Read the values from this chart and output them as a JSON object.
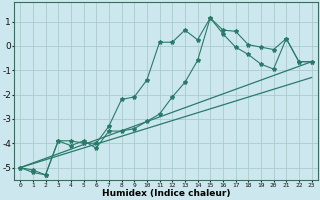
{
  "xlabel": "Humidex (Indice chaleur)",
  "background_color": "#cce8ee",
  "line_color": "#2a7a6a",
  "grid_color": "#aacccc",
  "xlim": [
    -0.5,
    23.5
  ],
  "ylim": [
    -5.5,
    1.8
  ],
  "series1_x": [
    0,
    1,
    2,
    3,
    4,
    5,
    6,
    7,
    8,
    9,
    10,
    11,
    12,
    13,
    14,
    15,
    16,
    17,
    18,
    19,
    20,
    21,
    22,
    23
  ],
  "series1_y": [
    -5.0,
    -5.1,
    -5.3,
    -3.9,
    -3.9,
    -4.0,
    -4.0,
    -3.3,
    -2.2,
    -2.1,
    -1.4,
    0.15,
    0.15,
    0.65,
    0.25,
    1.15,
    0.65,
    0.6,
    0.05,
    -0.05,
    -0.15,
    0.3,
    -0.65,
    -0.65
  ],
  "series2_x": [
    0,
    1,
    2,
    3,
    4,
    5,
    6,
    7,
    8,
    9,
    10,
    11,
    12,
    13,
    14,
    15,
    16,
    17,
    18,
    19,
    20,
    21,
    22,
    23
  ],
  "series2_y": [
    -5.0,
    -5.2,
    -5.3,
    -3.9,
    -4.1,
    -3.9,
    -4.2,
    -3.5,
    -3.5,
    -3.4,
    -3.1,
    -2.8,
    -2.1,
    -1.5,
    -0.6,
    1.15,
    0.5,
    -0.05,
    -0.35,
    -0.75,
    -0.95,
    0.3,
    -0.65,
    -0.65
  ],
  "line3_x": [
    0,
    23
  ],
  "line3_y": [
    -5.0,
    -0.65
  ],
  "line4_x": [
    0,
    23
  ],
  "line4_y": [
    -5.0,
    -1.3
  ],
  "yticks": [
    -5,
    -4,
    -3,
    -2,
    -1,
    0,
    1
  ],
  "xticks": [
    0,
    1,
    2,
    3,
    4,
    5,
    6,
    7,
    8,
    9,
    10,
    11,
    12,
    13,
    14,
    15,
    16,
    17,
    18,
    19,
    20,
    21,
    22,
    23
  ]
}
